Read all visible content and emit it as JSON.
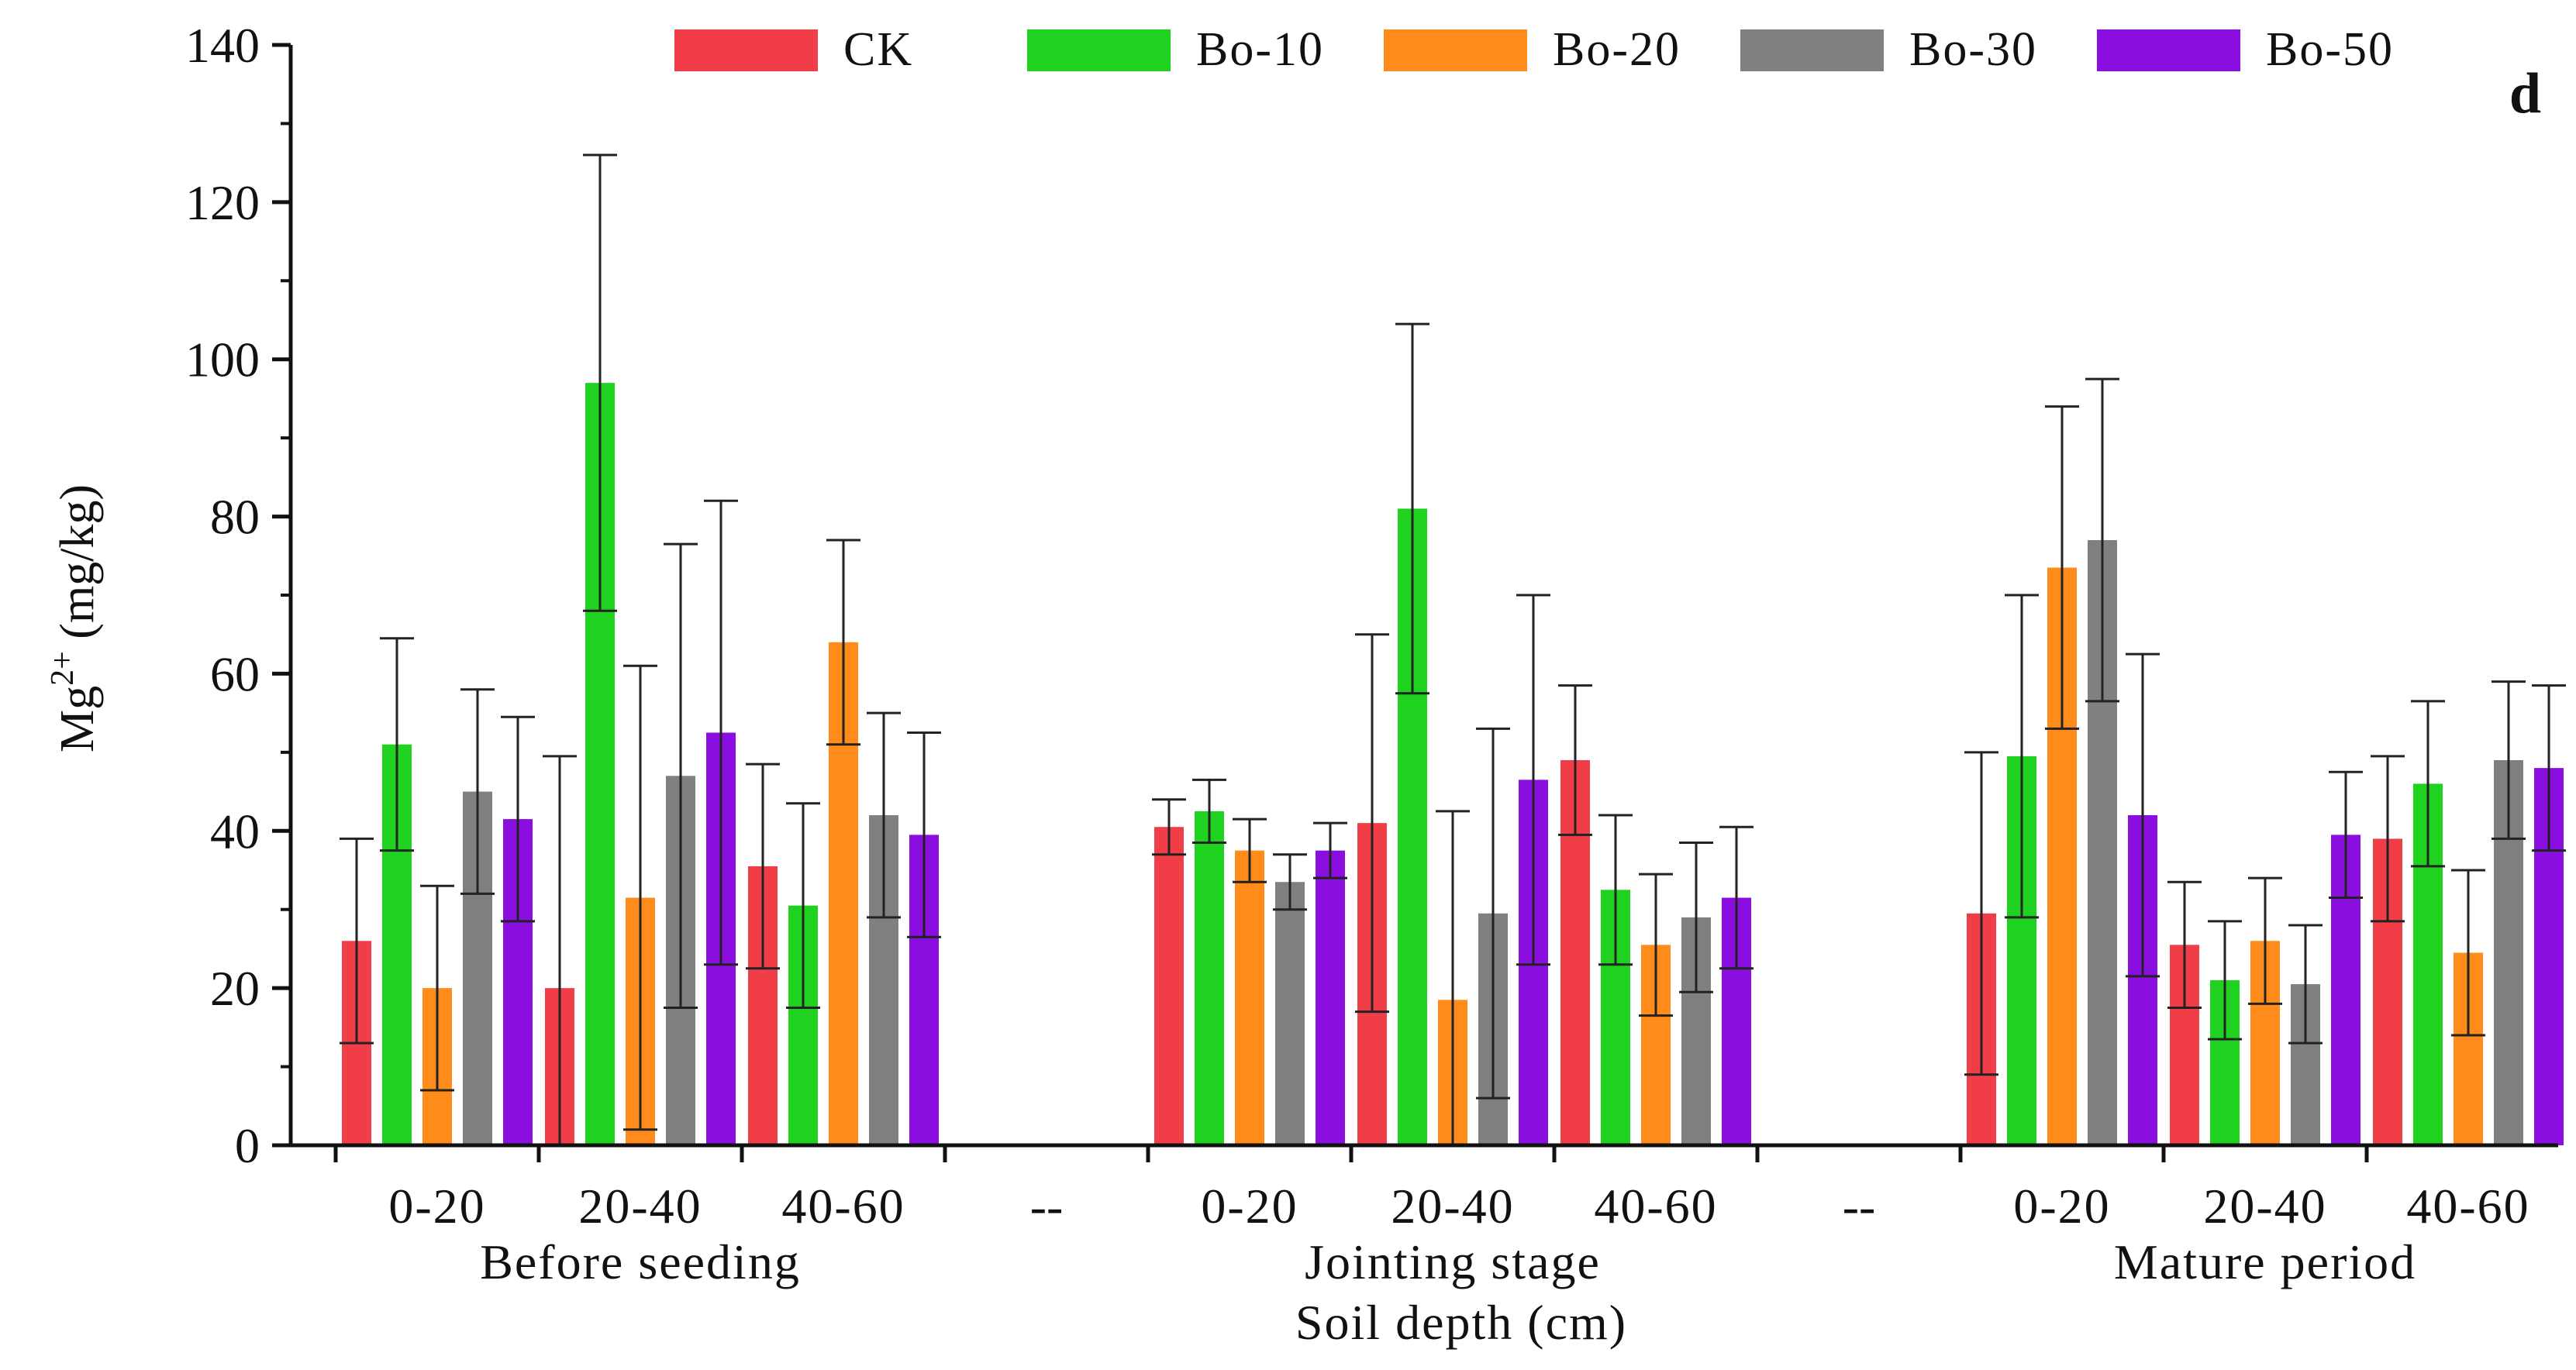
{
  "chart_data": {
    "type": "bar",
    "panel_letter": "d",
    "ylabel_base": "Mg",
    "ylabel_sup": "2+",
    "ylabel_unit": " (mg/kg)",
    "xlabel": "Soil depth (cm)",
    "ylim": [
      0,
      140
    ],
    "yticks": [
      "0",
      "20",
      "40",
      "60",
      "80",
      "100",
      "120",
      "140"
    ],
    "separator_label": "--",
    "groups": [
      {
        "name": "Before seeding",
        "categories": [
          "0-20",
          "20-40",
          "40-60"
        ]
      },
      {
        "name": "Jointing stage",
        "categories": [
          "0-20",
          "20-40",
          "40-60"
        ]
      },
      {
        "name": "Mature period",
        "categories": [
          "0-20",
          "20-40",
          "40-60"
        ]
      }
    ],
    "series": [
      {
        "name": "CK",
        "color": "#f03d48",
        "values": [
          26,
          20,
          35.5,
          40.5,
          41,
          49,
          29.5,
          25.5,
          39
        ],
        "errors": [
          13,
          29.5,
          13,
          3.5,
          24,
          9.5,
          20.5,
          8,
          10.5
        ]
      },
      {
        "name": "Bo-10",
        "color": "#1fd21f",
        "values": [
          51,
          97,
          30.5,
          42.5,
          81,
          32.5,
          49.5,
          21,
          46
        ],
        "errors": [
          13.5,
          29,
          13,
          4,
          23.5,
          9.5,
          20.5,
          7.5,
          10.5
        ]
      },
      {
        "name": "Bo-20",
        "color": "#ff8c1a",
        "values": [
          20,
          31.5,
          64,
          37.5,
          18.5,
          25.5,
          73.5,
          26,
          24.5
        ],
        "errors": [
          13,
          29.5,
          13,
          4,
          24,
          9,
          20.5,
          8,
          10.5
        ]
      },
      {
        "name": "Bo-30",
        "color": "#808080",
        "values": [
          45,
          47,
          42,
          33.5,
          29.5,
          29,
          77,
          20.5,
          49
        ],
        "errors": [
          13,
          29.5,
          13,
          3.5,
          23.5,
          9.5,
          20.5,
          7.5,
          10
        ]
      },
      {
        "name": "Bo-50",
        "color": "#8a0ee0",
        "values": [
          41.5,
          52.5,
          39.5,
          37.5,
          46.5,
          31.5,
          42,
          39.5,
          48
        ],
        "errors": [
          13,
          29.5,
          13,
          3.5,
          23.5,
          9,
          20.5,
          8,
          10.5
        ]
      }
    ]
  }
}
